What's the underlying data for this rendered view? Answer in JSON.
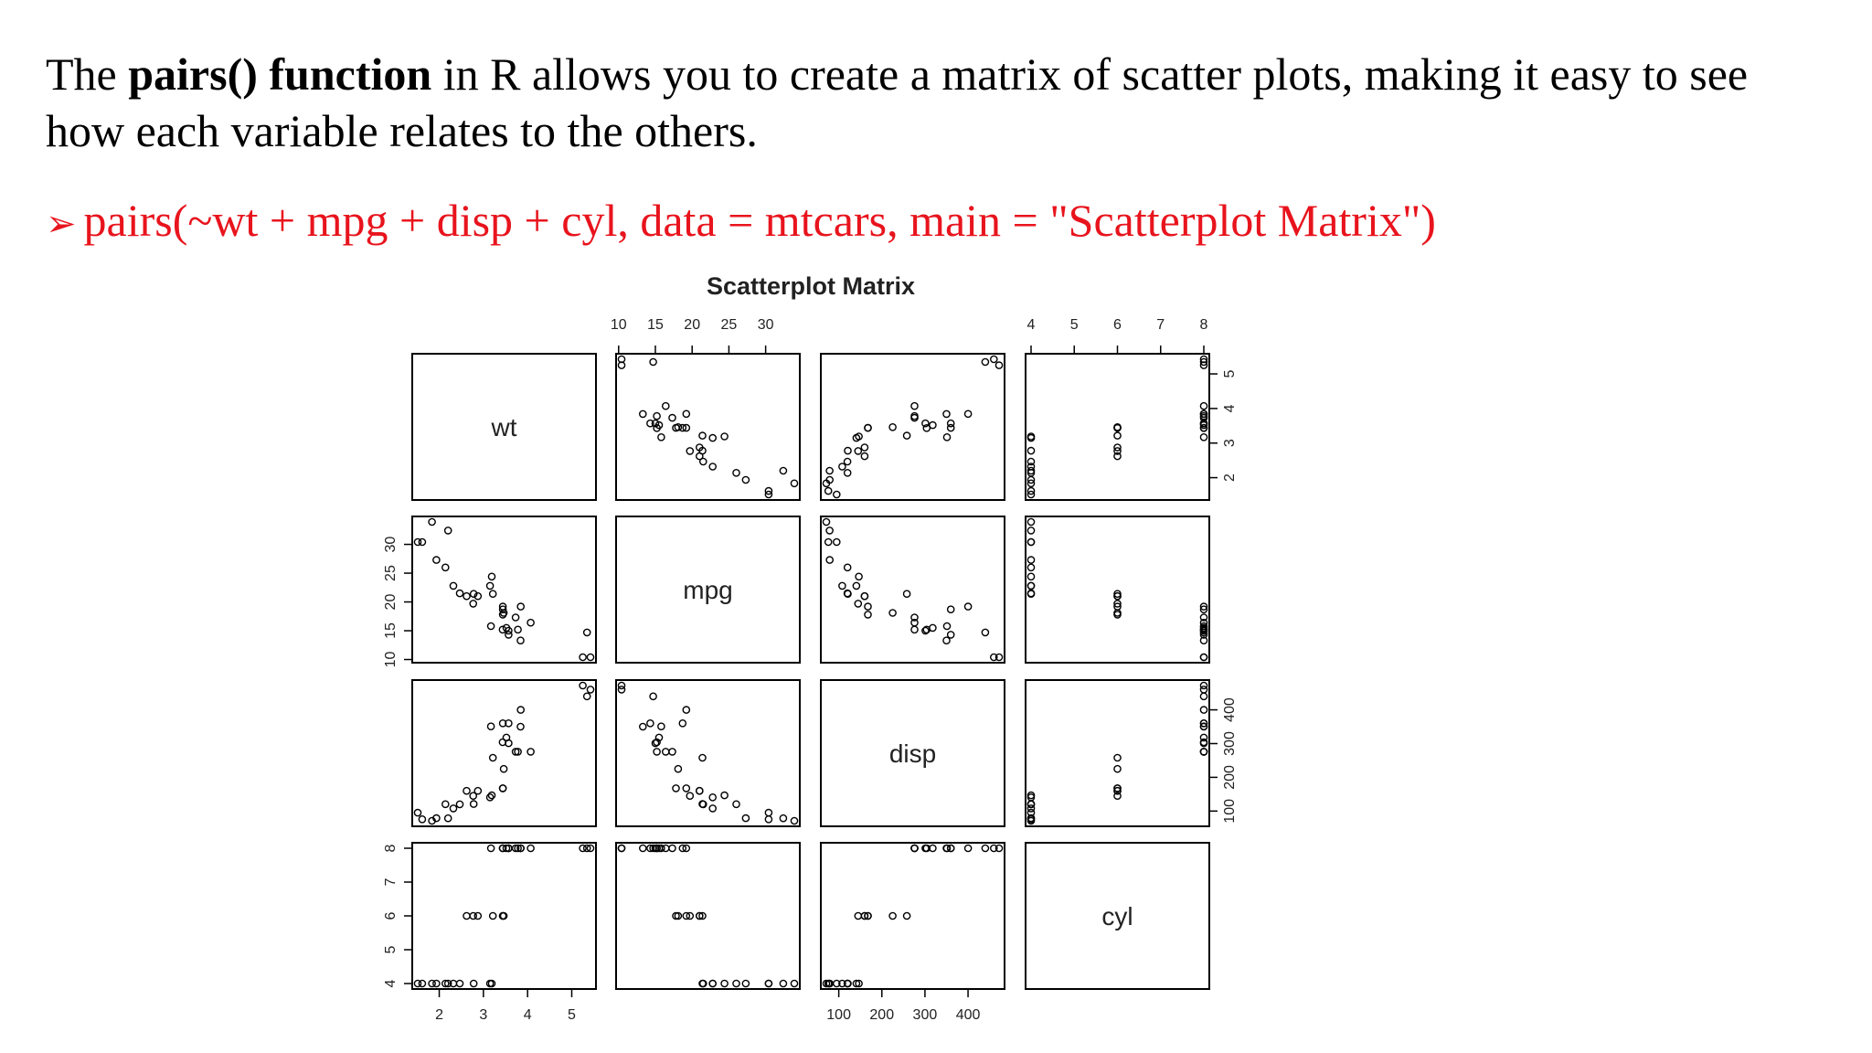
{
  "intro": {
    "before": "The ",
    "bold": "pairs() function",
    "after": " in R allows you to create a matrix of scatter plots, making it easy to see how each variable relates to the others."
  },
  "code": {
    "arrow": "➢",
    "text": "pairs(~wt + mpg + disp + cyl, data = mtcars, main = \"Scatterplot Matrix\")"
  },
  "colors": {
    "text": "#000000",
    "code": "#e8141d",
    "points": "#000000",
    "panel_border": "#000000"
  },
  "chart_data": {
    "type": "scatter",
    "title": "Scatterplot Matrix",
    "variables": [
      "wt",
      "mpg",
      "disp",
      "cyl"
    ],
    "ranges": {
      "wt": [
        1.513,
        5.424
      ],
      "mpg": [
        10.4,
        33.9
      ],
      "disp": [
        71.1,
        472
      ],
      "cyl": [
        4,
        8
      ]
    },
    "ticks": {
      "wt": [
        2,
        3,
        4,
        5
      ],
      "mpg": [
        10,
        15,
        20,
        25,
        30
      ],
      "disp": [
        100,
        200,
        300,
        400
      ],
      "cyl": [
        4,
        5,
        6,
        7,
        8
      ]
    },
    "axis_placement": {
      "wt": {
        "bottom_ticks": true,
        "right_ticks": true
      },
      "mpg": {
        "top_ticks": true,
        "left_ticks": true
      },
      "disp": {
        "bottom_ticks": true,
        "right_ticks": true
      },
      "cyl": {
        "top_ticks": true,
        "left_ticks": true
      }
    },
    "observations": {
      "wt": [
        2.62,
        2.875,
        2.32,
        3.215,
        3.44,
        3.46,
        3.57,
        3.19,
        3.15,
        3.44,
        3.44,
        4.07,
        3.73,
        3.78,
        5.25,
        5.424,
        5.345,
        2.2,
        1.615,
        1.835,
        2.465,
        3.52,
        3.435,
        3.84,
        3.845,
        1.935,
        2.14,
        1.513,
        3.17,
        2.77,
        3.57,
        2.78
      ],
      "mpg": [
        21,
        21,
        22.8,
        21.4,
        18.7,
        18.1,
        14.3,
        24.4,
        22.8,
        19.2,
        17.8,
        16.4,
        17.3,
        15.2,
        10.4,
        10.4,
        14.7,
        32.4,
        30.4,
        33.9,
        21.5,
        15.5,
        15.2,
        13.3,
        19.2,
        27.3,
        26,
        30.4,
        15.8,
        19.7,
        15,
        21.4
      ],
      "disp": [
        160,
        160,
        108,
        258,
        360,
        225,
        360,
        146.7,
        140.8,
        167.6,
        167.6,
        275.8,
        275.8,
        275.8,
        472,
        460,
        440,
        78.7,
        75.7,
        71.1,
        120.1,
        318,
        304,
        350,
        400,
        79,
        120.3,
        95.1,
        351,
        145,
        301,
        121
      ],
      "cyl": [
        6,
        6,
        4,
        6,
        8,
        6,
        8,
        4,
        4,
        6,
        6,
        8,
        8,
        8,
        8,
        8,
        8,
        4,
        4,
        4,
        4,
        8,
        8,
        8,
        8,
        4,
        4,
        4,
        8,
        6,
        8,
        4
      ]
    }
  }
}
